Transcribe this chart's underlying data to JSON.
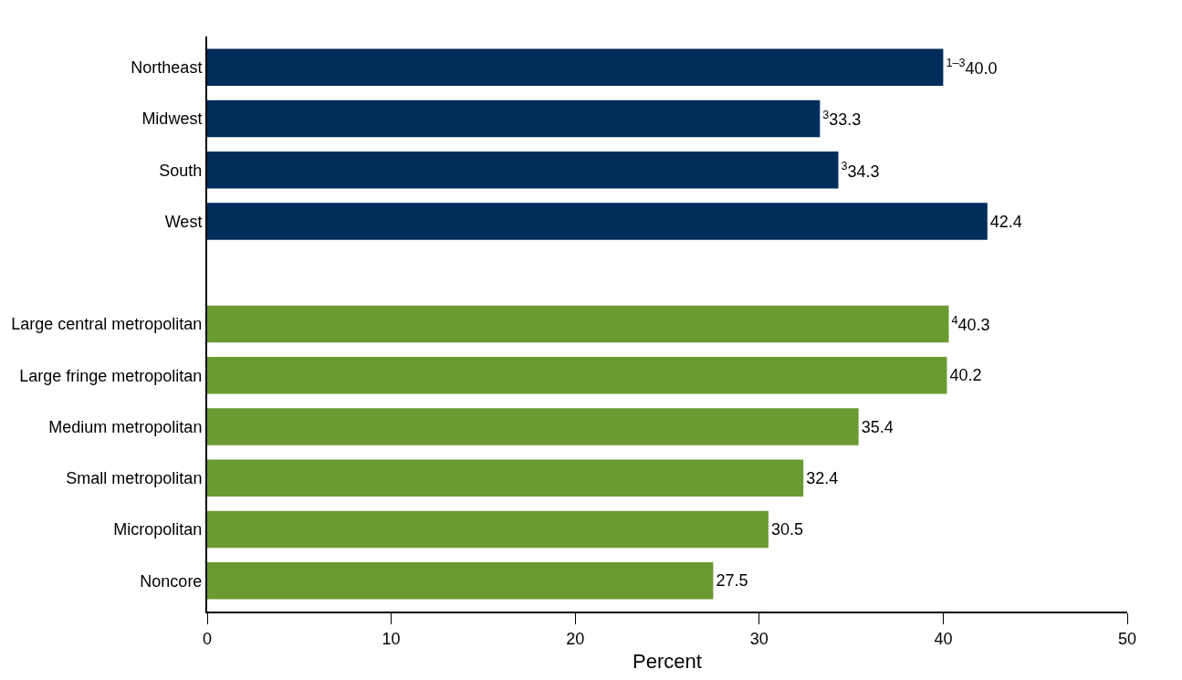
{
  "chart_data": {
    "type": "bar",
    "orientation": "horizontal",
    "xlabel": "Percent",
    "categories": [
      "Northeast",
      "Midwest",
      "South",
      "West",
      null,
      "Large central metropolitan",
      "Large fringe metropolitan",
      "Medium metropolitan",
      "Small metropolitan",
      "Micropolitan",
      "Noncore"
    ],
    "values": [
      40.0,
      33.3,
      34.3,
      42.4,
      null,
      40.3,
      40.2,
      35.4,
      32.4,
      30.5,
      27.5
    ],
    "value_labels": [
      "$^{1–3}$40.0",
      "$^{3}$33.3",
      "$^{3}$34.3",
      "42.4",
      null,
      "$^{4}$40.3",
      "40.2",
      "35.4",
      "32.4",
      "30.5",
      "27.5"
    ],
    "colors": [
      "#002d5a",
      "#002d5a",
      "#002d5a",
      "#002d5a",
      "#002d5a",
      "#6a9a31",
      "#6a9a31",
      "#6a9a31",
      "#6a9a31",
      "#6a9a31",
      "#6a9a31"
    ],
    "xlim": [
      0,
      50
    ],
    "xticks": [
      0,
      10,
      20,
      30,
      40,
      50
    ]
  }
}
